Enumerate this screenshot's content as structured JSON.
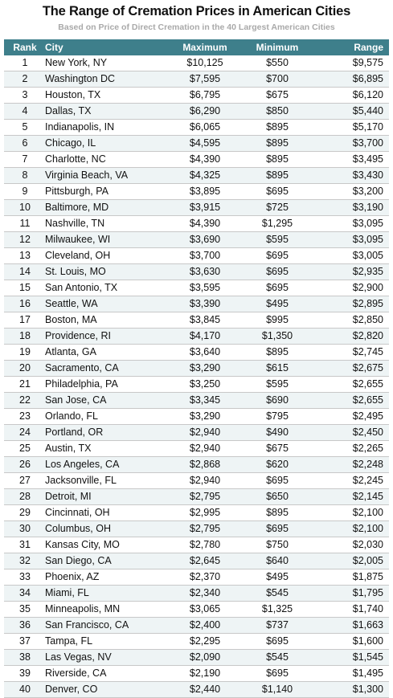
{
  "chart_data": {
    "type": "table",
    "title": "The Range of Cremation Prices in American Cities",
    "subtitle": "Based on Price of Direct Cremation in the 40 Largest American Cities",
    "columns": [
      "Rank",
      "City",
      "Maximum",
      "Minimum",
      "Range"
    ],
    "rows": [
      [
        "1",
        "New York, NY",
        "$10,125",
        "$550",
        "$9,575"
      ],
      [
        "2",
        "Washington DC",
        "$7,595",
        "$700",
        "$6,895"
      ],
      [
        "3",
        "Houston, TX",
        "$6,795",
        "$675",
        "$6,120"
      ],
      [
        "4",
        "Dallas, TX",
        "$6,290",
        "$850",
        "$5,440"
      ],
      [
        "5",
        "Indianapolis, IN",
        "$6,065",
        "$895",
        "$5,170"
      ],
      [
        "6",
        "Chicago, IL",
        "$4,595",
        "$895",
        "$3,700"
      ],
      [
        "7",
        "Charlotte, NC",
        "$4,390",
        "$895",
        "$3,495"
      ],
      [
        "8",
        "Virginia Beach, VA",
        "$4,325",
        "$895",
        "$3,430"
      ],
      [
        "9",
        "Pittsburgh, PA",
        "$3,895",
        "$695",
        "$3,200"
      ],
      [
        "10",
        "Baltimore, MD",
        "$3,915",
        "$725",
        "$3,190"
      ],
      [
        "11",
        "Nashville, TN",
        "$4,390",
        "$1,295",
        "$3,095"
      ],
      [
        "12",
        "Milwaukee, WI",
        "$3,690",
        "$595",
        "$3,095"
      ],
      [
        "13",
        "Cleveland, OH",
        "$3,700",
        "$695",
        "$3,005"
      ],
      [
        "14",
        "St. Louis, MO",
        "$3,630",
        "$695",
        "$2,935"
      ],
      [
        "15",
        "San Antonio, TX",
        "$3,595",
        "$695",
        "$2,900"
      ],
      [
        "16",
        "Seattle, WA",
        "$3,390",
        "$495",
        "$2,895"
      ],
      [
        "17",
        "Boston, MA",
        "$3,845",
        "$995",
        "$2,850"
      ],
      [
        "18",
        "Providence, RI",
        "$4,170",
        "$1,350",
        "$2,820"
      ],
      [
        "19",
        "Atlanta, GA",
        "$3,640",
        "$895",
        "$2,745"
      ],
      [
        "20",
        "Sacramento, CA",
        "$3,290",
        "$615",
        "$2,675"
      ],
      [
        "21",
        "Philadelphia, PA",
        "$3,250",
        "$595",
        "$2,655"
      ],
      [
        "22",
        "San Jose, CA",
        "$3,345",
        "$690",
        "$2,655"
      ],
      [
        "23",
        "Orlando, FL",
        "$3,290",
        "$795",
        "$2,495"
      ],
      [
        "24",
        "Portland, OR",
        "$2,940",
        "$490",
        "$2,450"
      ],
      [
        "25",
        "Austin, TX",
        "$2,940",
        "$675",
        "$2,265"
      ],
      [
        "26",
        "Los Angeles, CA",
        "$2,868",
        "$620",
        "$2,248"
      ],
      [
        "27",
        "Jacksonville, FL",
        "$2,940",
        "$695",
        "$2,245"
      ],
      [
        "28",
        "Detroit, MI",
        "$2,795",
        "$650",
        "$2,145"
      ],
      [
        "29",
        "Cincinnati, OH",
        "$2,995",
        "$895",
        "$2,100"
      ],
      [
        "30",
        "Columbus, OH",
        "$2,795",
        "$695",
        "$2,100"
      ],
      [
        "31",
        "Kansas City, MO",
        "$2,780",
        "$750",
        "$2,030"
      ],
      [
        "32",
        "San Diego, CA",
        "$2,645",
        "$640",
        "$2,005"
      ],
      [
        "33",
        "Phoenix, AZ",
        "$2,370",
        "$495",
        "$1,875"
      ],
      [
        "34",
        "Miami, FL",
        "$2,340",
        "$545",
        "$1,795"
      ],
      [
        "35",
        "Minneapolis, MN",
        "$3,065",
        "$1,325",
        "$1,740"
      ],
      [
        "36",
        "San Francisco, CA",
        "$2,400",
        "$737",
        "$1,663"
      ],
      [
        "37",
        "Tampa, FL",
        "$2,295",
        "$695",
        "$1,600"
      ],
      [
        "38",
        "Las Vegas, NV",
        "$2,090",
        "$545",
        "$1,545"
      ],
      [
        "39",
        "Riverside, CA",
        "$2,190",
        "$695",
        "$1,495"
      ],
      [
        "40",
        "Denver, CO",
        "$2,440",
        "$1,140",
        "$1,300"
      ]
    ]
  },
  "colors": {
    "header_bg": "#3e7f8b",
    "header_text": "#ffffff",
    "alt_row_bg": "#eef4f5",
    "subtitle": "#a9a9a9"
  }
}
